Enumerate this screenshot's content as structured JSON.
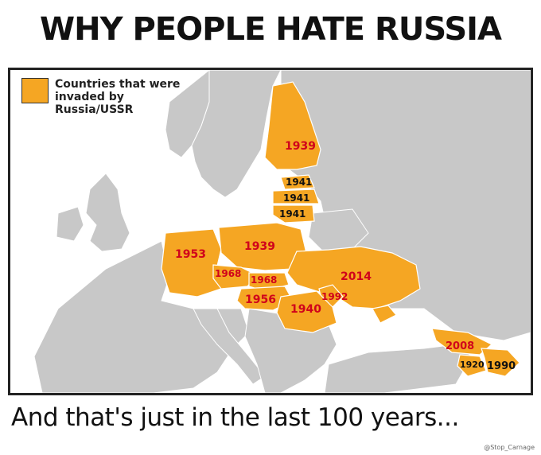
{
  "title": "WHY PEOPLE HATE RUSSIA",
  "legend": {
    "label": "Countries that were invaded by Russia/USSR",
    "color": "#f5a623"
  },
  "colors": {
    "land": "#c8c8c8",
    "sea": "#ffffff",
    "invaded": "#f5a623",
    "label_red": "#d0021b",
    "label_dark": "#111111"
  },
  "map_labels": [
    {
      "id": "finland",
      "year": "1939",
      "color": "red"
    },
    {
      "id": "estonia",
      "year": "1941",
      "color": "dark"
    },
    {
      "id": "latvia",
      "year": "1941",
      "color": "dark"
    },
    {
      "id": "lithuania",
      "year": "1941",
      "color": "dark"
    },
    {
      "id": "germany",
      "year": "1953",
      "color": "red"
    },
    {
      "id": "poland",
      "year": "1939",
      "color": "red"
    },
    {
      "id": "czech",
      "year": "1968",
      "color": "red"
    },
    {
      "id": "slovakia",
      "year": "1968",
      "color": "red"
    },
    {
      "id": "ukraine",
      "year": "2014",
      "color": "red"
    },
    {
      "id": "moldova",
      "year": "1992",
      "color": "red"
    },
    {
      "id": "hungary",
      "year": "1956",
      "color": "red"
    },
    {
      "id": "romania",
      "year": "1940",
      "color": "red"
    },
    {
      "id": "georgia",
      "year": "2008",
      "color": "red"
    },
    {
      "id": "armenia",
      "year": "1920",
      "color": "dark"
    },
    {
      "id": "azerbaijan",
      "year": "1990",
      "color": "dark"
    }
  ],
  "footer": "And that's just in the last 100 years...",
  "credit": "@Stop_Carnage"
}
